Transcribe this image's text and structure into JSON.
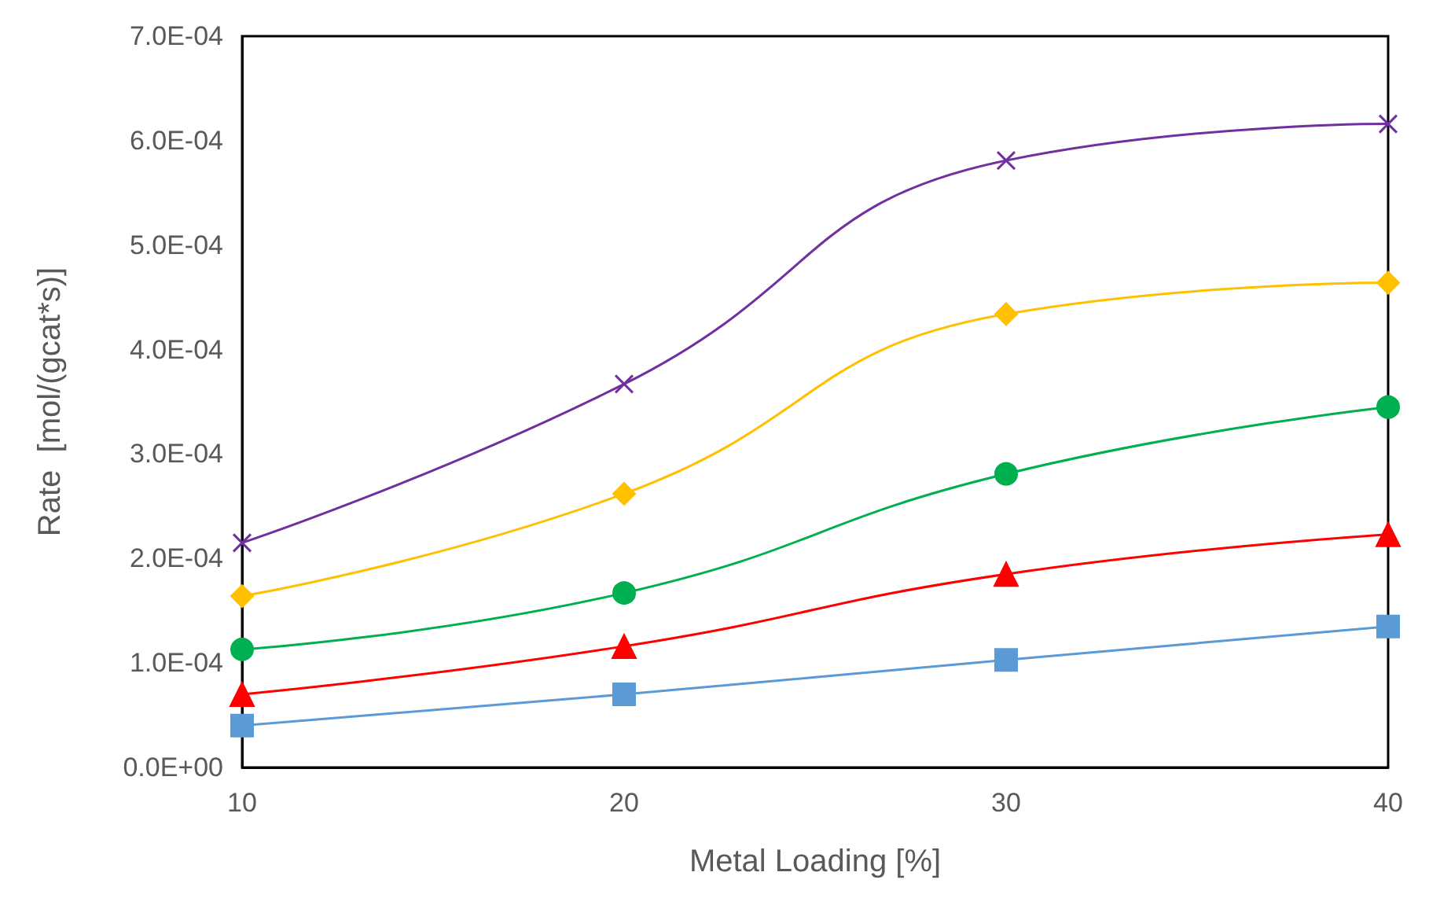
{
  "chart_data": {
    "type": "line",
    "xlabel": "Metal Loading [%]",
    "ylabel": "Rate  [mol/(gcat*s)]",
    "x": [
      10,
      20,
      30,
      40
    ],
    "series": [
      {
        "color": "#7030a0",
        "marker": "cross",
        "values": [
          0.000215,
          0.000367,
          0.000581,
          0.000616
        ]
      },
      {
        "color": "#ffc000",
        "marker": "diamond",
        "values": [
          0.000164,
          0.000262,
          0.000434,
          0.000464
        ]
      },
      {
        "color": "#00b050",
        "marker": "circle",
        "values": [
          0.000113,
          0.000167,
          0.000281,
          0.000345
        ]
      },
      {
        "color": "#ff0000",
        "marker": "triangle",
        "values": [
          7e-05,
          0.000116,
          0.000185,
          0.000223
        ]
      },
      {
        "color": "#5b9bd5",
        "marker": "square",
        "values": [
          4e-05,
          7e-05,
          0.000103,
          0.000135
        ]
      }
    ],
    "xlim": [
      10,
      40
    ],
    "xticks": [
      10,
      20,
      30,
      40
    ],
    "ylim": [
      0,
      0.0007
    ],
    "yticks": [
      {
        "value": 0,
        "label": "0.0E+00"
      },
      {
        "value": 0.0001,
        "label": "1.0E-04"
      },
      {
        "value": 0.0002,
        "label": "2.0E-04"
      },
      {
        "value": 0.0003,
        "label": "3.0E-04"
      },
      {
        "value": 0.0004,
        "label": "4.0E-04"
      },
      {
        "value": 0.0005,
        "label": "5.0E-04"
      },
      {
        "value": 0.0006,
        "label": "6.0E-04"
      },
      {
        "value": 0.0007,
        "label": "7.0E-04"
      }
    ],
    "grid": false,
    "line_style": "solid"
  }
}
